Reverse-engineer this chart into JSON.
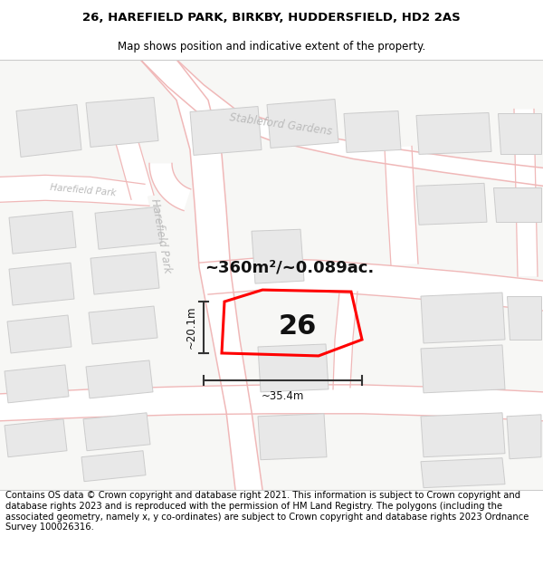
{
  "title_line1": "26, HAREFIELD PARK, BIRKBY, HUDDERSFIELD, HD2 2AS",
  "title_line2": "Map shows position and indicative extent of the property.",
  "footer_text": "Contains OS data © Crown copyright and database right 2021. This information is subject to Crown copyright and database rights 2023 and is reproduced with the permission of HM Land Registry. The polygons (including the associated geometry, namely x, y co-ordinates) are subject to Crown copyright and database rights 2023 Ordnance Survey 100026316.",
  "area_label": "~360m²/~0.089ac.",
  "plot_number": "26",
  "width_label": "~35.4m",
  "height_label": "~20.1m",
  "street_label_harefield_park": "Harefield Park",
  "street_label_stableford": "Stableford Gardens",
  "bg_color": "#ffffff",
  "road_outline_color": "#f0b8b8",
  "building_fill": "#e8e8e8",
  "building_outline": "#cccccc",
  "plot_color": "#ff0000",
  "dim_color": "#333333",
  "street_text_color": "#bbbbbb",
  "title_fontsize": 9.5,
  "subtitle_fontsize": 8.5,
  "footer_fontsize": 7.2,
  "area_fontsize": 13,
  "plot_num_fontsize": 22,
  "dim_fontsize": 8.5,
  "street_fontsize": 8.5
}
